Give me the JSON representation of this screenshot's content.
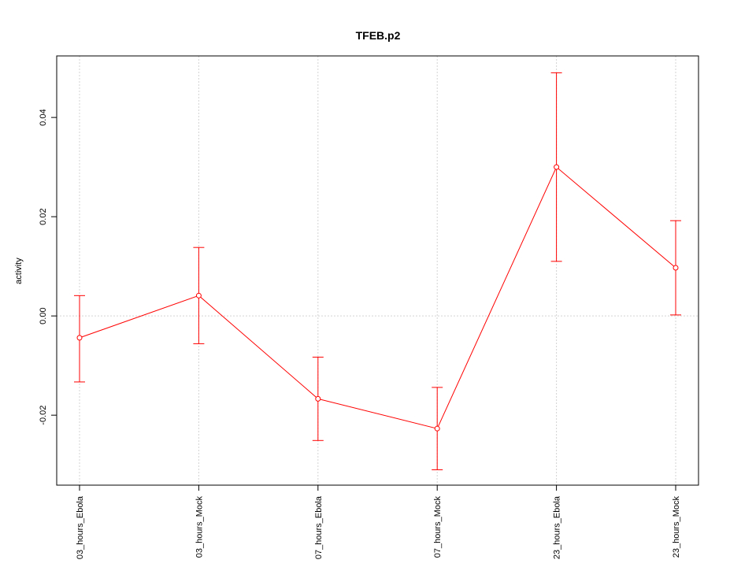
{
  "chart_data": {
    "type": "line",
    "title": "TFEB.p2",
    "xlabel": "",
    "ylabel": "activity",
    "categories": [
      "03_hours_Ebola",
      "03_hours_Mock",
      "07_hours_Ebola",
      "07_hours_Mock",
      "23_hours_Ebola",
      "23_hours_Mock"
    ],
    "values": [
      -0.0044,
      0.0041,
      -0.0167,
      -0.0227,
      0.03,
      0.0097
    ],
    "error_upper": [
      0.0041,
      0.0138,
      -0.0083,
      -0.0144,
      0.049,
      0.0192
    ],
    "error_lower": [
      -0.0133,
      -0.0056,
      -0.0251,
      -0.031,
      0.011,
      0.0002
    ],
    "ylim": [
      -0.0341,
      0.0524
    ],
    "yticks": [
      -0.02,
      0.0,
      0.02,
      0.04
    ],
    "ytick_labels": [
      "-0.02",
      "0.00",
      "0.02",
      "0.04"
    ],
    "grid": true,
    "color": "#ff0000"
  }
}
